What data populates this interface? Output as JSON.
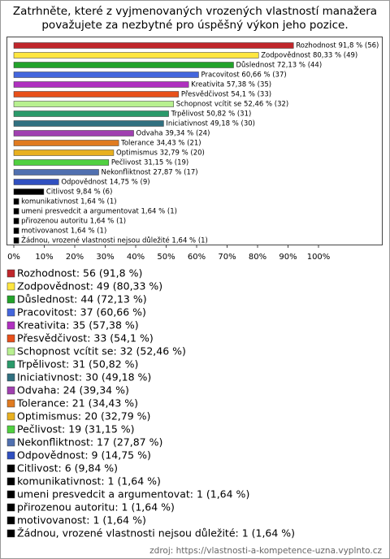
{
  "chart_data": {
    "type": "barh",
    "title": [
      "Zatrhněte, které z vyjmenovaných vrozených vlastností manažera",
      "považujete za nezbytné pro úspěšný výkon jeho pozice."
    ],
    "categories": [
      "Rozhodnost",
      "Zodpovědnost",
      "Důslednost",
      "Pracovitost",
      "Kreativita",
      "Přesvědčivost",
      "Schopnost vcítit se",
      "Trpělivost",
      "Iniciativnost",
      "Odvaha",
      "Tolerance",
      "Optimismus",
      "Pečlivost",
      "Nekonfliktnost",
      "Odpovědnost",
      "Citlivost",
      "komunikativnost",
      "umeni presvedcit a argumentovat",
      "přirozenou autoritu",
      "motivovanost",
      "Žádnou, vrozené vlastnosti nejsou důležité"
    ],
    "values": [
      91.8,
      80.33,
      72.13,
      60.66,
      57.38,
      54.1,
      52.46,
      50.82,
      49.18,
      39.34,
      34.43,
      32.79,
      31.15,
      27.87,
      14.75,
      9.84,
      1.64,
      1.64,
      1.64,
      1.64,
      1.64
    ],
    "value_labels": [
      "Rozhodnost 91,8 % (56)",
      "Zodpovědnost 80,33 % (49)",
      "Důslednost 72,13 % (44)",
      "Pracovitost 60,66 % (37)",
      "Kreativita 57,38 % (35)",
      "Přesvědčivost 54,1 % (33)",
      "Schopnost vcítit se 52,46 % (32)",
      "Trpělivost 50,82 % (31)",
      "Iniciativnost 49,18 % (30)",
      "Odvaha 39,34 % (24)",
      "Tolerance 34,43 % (21)",
      "Optimismus 32,79 % (20)",
      "Pečlivost 31,15 % (19)",
      "Nekonfliktnost 27,87 % (17)",
      "Odpovědnost 14,75 % (9)",
      "Citlivost 9,84 % (6)",
      "komunikativnost 1,64 % (1)",
      "umeni presvedcit a argumentovat 1,64 % (1)",
      "přirozenou autoritu 1,64 % (1)",
      "motivovanost 1,64 % (1)",
      "Žádnou, vrozené vlastnosti nejsou důležité 1,64 % (1)"
    ],
    "legend_labels": [
      "Rozhodnost: 56 (91,8 %)",
      "Zodpovědnost: 49 (80,33 %)",
      "Důslednost: 44 (72,13 %)",
      "Pracovitost: 37 (60,66 %)",
      "Kreativita: 35 (57,38 %)",
      "Přesvědčivost: 33 (54,1 %)",
      "Schopnost vcítit se: 32 (52,46 %)",
      "Trpělivost: 31 (50,82 %)",
      "Iniciativnost: 30 (49,18 %)",
      "Odvaha: 24 (39,34 %)",
      "Tolerance: 21 (34,43 %)",
      "Optimismus: 20 (32,79 %)",
      "Pečlivost: 19 (31,15 %)",
      "Nekonfliktnost: 17 (27,87 %)",
      "Odpovědnost: 9 (14,75 %)",
      "Citlivost: 6 (9,84 %)",
      "komunikativnost: 1 (1,64 %)",
      "umeni presvedcit a argumentovat: 1 (1,64 %)",
      "přirozenou autoritu: 1 (1,64 %)",
      "motivovanost: 1 (1,64 %)",
      "Žádnou, vrozené vlastnosti nejsou důležité: 1 (1,64 %)"
    ],
    "colors": [
      "#c0262b",
      "#ffe640",
      "#22a32a",
      "#4466dd",
      "#b030c0",
      "#e8501a",
      "#b8f090",
      "#2a9a6a",
      "#307080",
      "#a040b0",
      "#e07b20",
      "#e8b020",
      "#50d040",
      "#5070b0",
      "#3050c0",
      "#000000",
      "#000000",
      "#000000",
      "#000000",
      "#000000",
      "#000000"
    ],
    "xlim": [
      0,
      120
    ],
    "xticks": [
      {
        "value": 0,
        "label": "0%"
      },
      {
        "value": 10,
        "label": "10%"
      },
      {
        "value": 20,
        "label": "20%"
      },
      {
        "value": 30,
        "label": "30%"
      },
      {
        "value": 40,
        "label": "40%"
      },
      {
        "value": 50,
        "label": "50%"
      },
      {
        "value": 60,
        "label": "60%"
      },
      {
        "value": 70,
        "label": "70%"
      },
      {
        "value": 80,
        "label": "80%"
      },
      {
        "value": 90,
        "label": "90%"
      },
      {
        "value": 100,
        "label": "100%"
      }
    ],
    "source": "zdroj: https://vlastnosti-a-kompetence-uzna.vyplnto.cz"
  }
}
